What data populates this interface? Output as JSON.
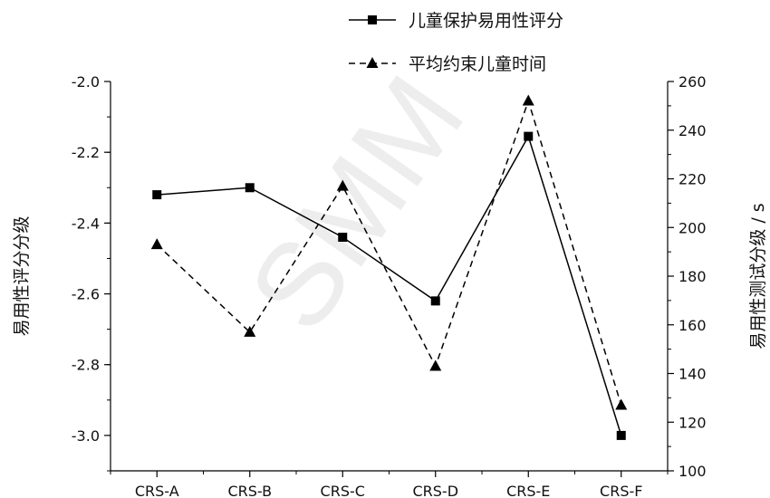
{
  "chart_data": {
    "type": "line",
    "categories": [
      "CRS-A",
      "CRS-B",
      "CRS-C",
      "CRS-D",
      "CRS-E",
      "CRS-F"
    ],
    "series": [
      {
        "name": "儿童保护易用性评分",
        "axis": "left",
        "marker": "square",
        "line": "solid",
        "color": "#000000",
        "values": [
          -2.32,
          -2.3,
          -2.44,
          -2.62,
          -2.155,
          -3.0
        ]
      },
      {
        "name": "平均约束儿童时间",
        "axis": "right",
        "marker": "triangle",
        "line": "dashed",
        "color": "#000000",
        "values": [
          193,
          157,
          217,
          143,
          252,
          127
        ]
      }
    ],
    "ylabel": "易用性评分分级",
    "y2label": "易用性测试分级 / s",
    "ylim": [
      -3.1,
      -2.0
    ],
    "y2lim": [
      100,
      260
    ],
    "yticks": [
      "-2.0",
      "-2.2",
      "-2.4",
      "-2.6",
      "-2.8",
      "-3.0"
    ],
    "y2ticks": [
      "100",
      "120",
      "140",
      "160",
      "180",
      "200",
      "220",
      "240",
      "260"
    ],
    "legend": "top-right",
    "grid": false
  },
  "watermark": "SMM"
}
